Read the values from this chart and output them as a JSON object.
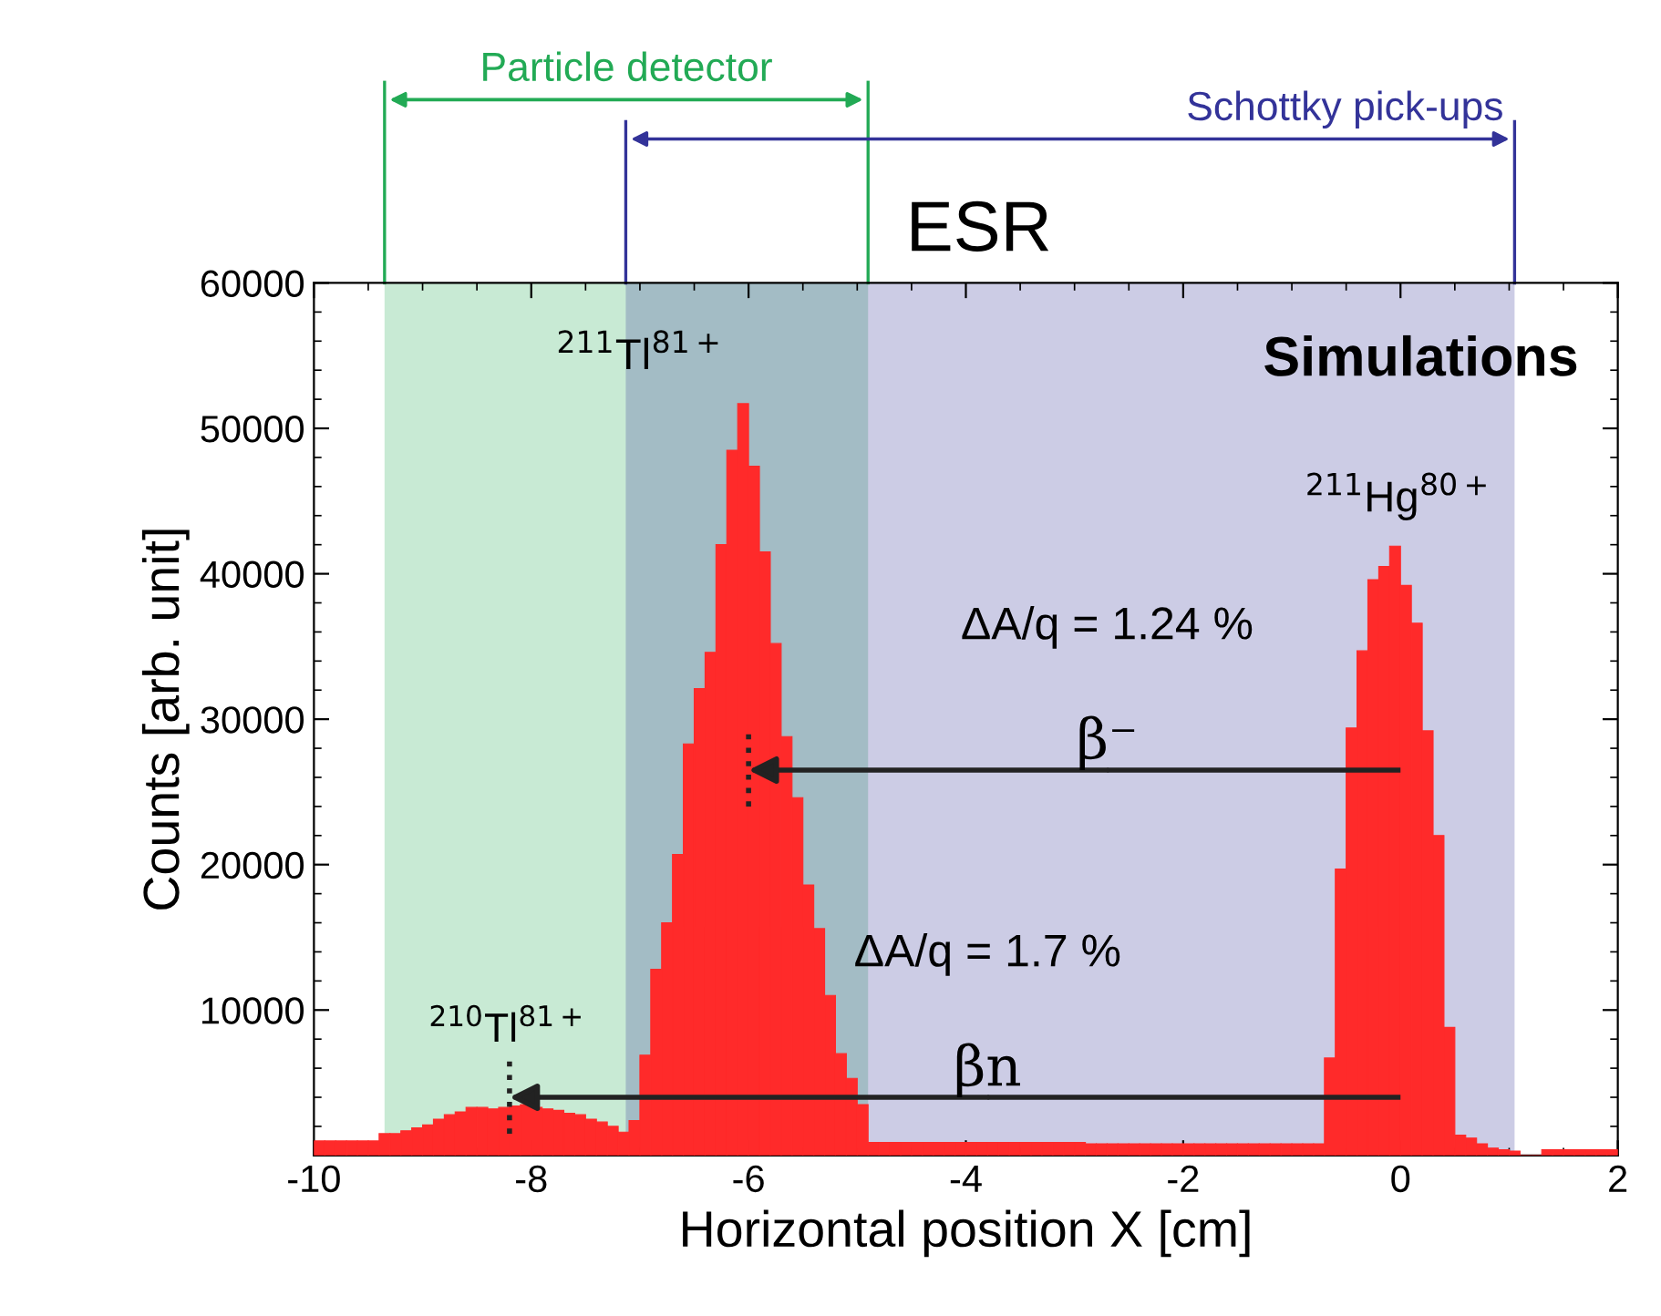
{
  "chart_data": {
    "type": "histogram",
    "xlabel": "Horizontal position X [cm]",
    "ylabel": "Counts [arb. unit]",
    "bins": [
      -10.0,
      -9.9,
      -9.8,
      -9.7,
      -9.6,
      -9.5,
      -9.4,
      -9.3,
      -9.2,
      -9.1,
      -9.0,
      -8.9,
      -8.8,
      -8.7,
      -8.6,
      -8.5,
      -8.4,
      -8.3,
      -8.2,
      -8.1,
      -8.0,
      -7.9,
      -7.8,
      -7.7,
      -7.6,
      -7.5,
      -7.4,
      -7.3,
      -7.2,
      -7.1,
      -7.0,
      -6.9,
      -6.8,
      -6.7,
      -6.6,
      -6.5,
      -6.4,
      -6.3,
      -6.2,
      -6.1,
      -6.0,
      -5.9,
      -5.8,
      -5.7,
      -5.6,
      -5.5,
      -5.4,
      -5.3,
      -5.2,
      -5.1,
      -5.0,
      -4.9,
      -4.8,
      -4.7,
      -4.6,
      -4.5,
      -4.4,
      -4.3,
      -4.2,
      -4.1,
      -4.0,
      -3.9,
      -3.8,
      -3.7,
      -3.6,
      -3.5,
      -3.4,
      -3.3,
      -3.2,
      -3.1,
      -3.0,
      -2.9,
      -2.8,
      -2.7,
      -2.6,
      -2.5,
      -2.4,
      -2.3,
      -2.2,
      -2.1,
      -2.0,
      -1.9,
      -1.8,
      -1.7,
      -1.6,
      -1.5,
      -1.4,
      -1.3,
      -1.2,
      -1.1,
      -1.0,
      -0.9,
      -0.8,
      -0.7,
      -0.6,
      -0.5,
      -0.4,
      -0.3,
      -0.2,
      -0.1,
      0.0,
      0.1,
      0.2,
      0.3,
      0.4,
      0.5,
      0.6,
      0.7,
      0.8,
      0.9,
      1.0,
      1.1,
      1.2,
      1.3,
      1.4,
      1.5,
      1.6,
      1.7,
      1.8,
      1.9,
      2.0
    ],
    "values": [
      1000,
      1000,
      1000,
      1000,
      1000,
      1000,
      1500,
      1500,
      1700,
      1900,
      2100,
      2500,
      2800,
      3000,
      3300,
      3300,
      3200,
      3300,
      3400,
      3500,
      3300,
      3200,
      3100,
      2900,
      2800,
      2500,
      2300,
      2000,
      1600,
      2400,
      6900,
      12800,
      16000,
      20700,
      28300,
      32100,
      34600,
      42000,
      48500,
      51700,
      47400,
      41500,
      35200,
      28800,
      24600,
      18600,
      15600,
      11000,
      7000,
      5300,
      3500,
      900,
      900,
      900,
      900,
      900,
      900,
      900,
      900,
      900,
      900,
      900,
      900,
      900,
      900,
      900,
      900,
      900,
      900,
      900,
      900,
      800,
      800,
      800,
      800,
      800,
      800,
      800,
      800,
      800,
      800,
      800,
      800,
      800,
      800,
      800,
      800,
      800,
      800,
      800,
      800,
      800,
      800,
      6700,
      19700,
      29400,
      34700,
      39600,
      40500,
      41900,
      39200,
      36600,
      29200,
      22000,
      8800,
      1400,
      1200,
      800,
      500,
      400,
      300,
      0,
      0,
      400,
      400,
      400,
      400,
      400,
      400,
      400
    ],
    "color": "#ff2a2a",
    "xlim": [
      -10,
      2
    ],
    "xticks": [
      -10,
      -8,
      -6,
      -4,
      -2,
      0,
      2
    ],
    "ylim": [
      0,
      60000
    ],
    "yticks": [
      10000,
      20000,
      30000,
      40000,
      50000,
      60000
    ],
    "bands": [
      {
        "axis": "x",
        "from": -9.35,
        "to": -4.9,
        "label": "Particle detector",
        "color": "#22aa55"
      },
      {
        "axis": "x",
        "from": -7.13,
        "to": 1.05,
        "label": "Schottky pick-ups",
        "color": "#333399"
      }
    ],
    "annotations": [
      "Simulations",
      {
        "text": "$^{211}$Tl$^{81+}$",
        "x": -6.0,
        "y": 51700
      },
      {
        "text": "$^{211}$Hg$^{80+}$",
        "x": 0.0,
        "y": 41900
      },
      {
        "text": "$^{210}$Tl$^{81+}$",
        "x": -8.2,
        "y": 3400
      },
      "ΔA/q = 1.24 %",
      {
        "text": "β⁻",
        "x": -6.0,
        "y": 26500
      },
      "ΔA/q = 1.7 %",
      {
        "text": "βn",
        "x": -8.2,
        "y": 4000
      },
      "ESR"
    ]
  }
}
